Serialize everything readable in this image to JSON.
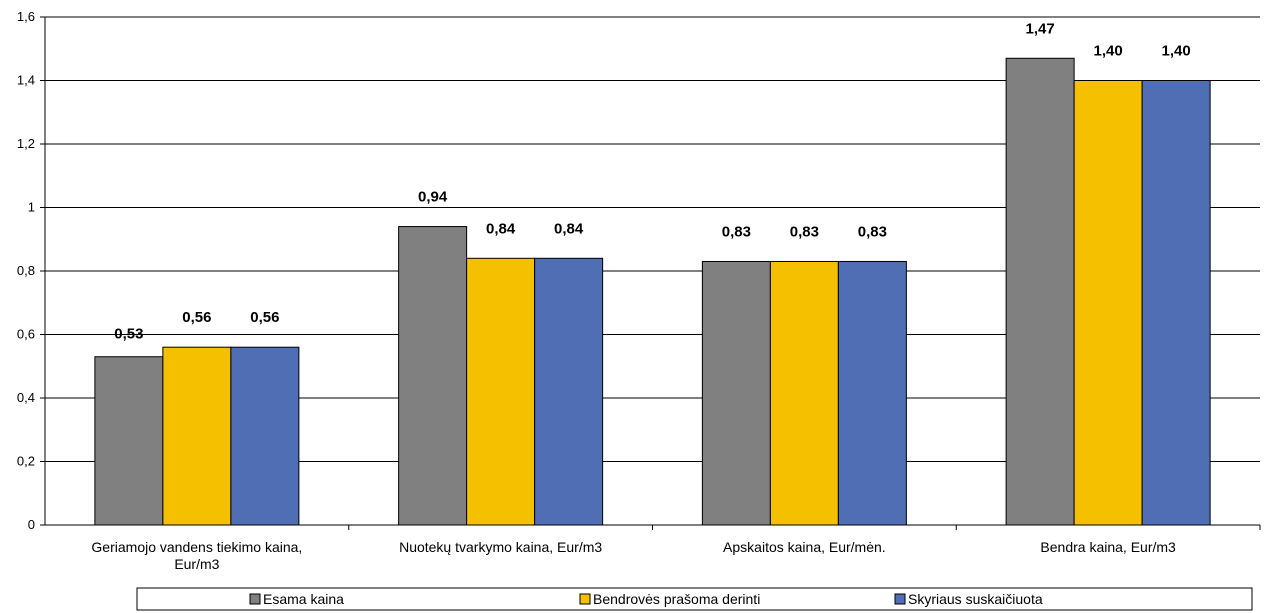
{
  "chart_data": {
    "type": "bar",
    "categories": [
      [
        "Geriamojo vandens tiekimo kaina,",
        "Eur/m3"
      ],
      [
        "Nuotekų tvarkymo kaina, Eur/m3"
      ],
      [
        "Apskaitos kaina, Eur/mėn."
      ],
      [
        "Bendra kaina, Eur/m3"
      ]
    ],
    "series": [
      {
        "name": "Esama kaina",
        "color": "#808080",
        "values": [
          0.53,
          0.94,
          0.83,
          1.47
        ],
        "labels": [
          "0,53",
          "0,94",
          "0,83",
          "1,47"
        ]
      },
      {
        "name": "Bendrovės prašoma derinti",
        "color": "#f5c000",
        "values": [
          0.56,
          0.84,
          0.83,
          1.4
        ],
        "labels": [
          "0,56",
          "0,84",
          "0,83",
          "1,40"
        ]
      },
      {
        "name": "Skyriaus suskaičiuota",
        "color": "#4f6eb4",
        "values": [
          0.56,
          0.84,
          0.83,
          1.4
        ],
        "labels": [
          "0,56",
          "0,84",
          "0,83",
          "1,40"
        ]
      }
    ],
    "yticks": [
      {
        "value": 0,
        "label": "0"
      },
      {
        "value": 0.2,
        "label": "0,2"
      },
      {
        "value": 0.4,
        "label": "0,4"
      },
      {
        "value": 0.6,
        "label": "0,6"
      },
      {
        "value": 0.8,
        "label": "0,8"
      },
      {
        "value": 1.0,
        "label": "1"
      },
      {
        "value": 1.2,
        "label": "1,2"
      },
      {
        "value": 1.4,
        "label": "1,4"
      },
      {
        "value": 1.6,
        "label": "1,6"
      }
    ],
    "ylim": [
      0,
      1.6
    ],
    "grid": true,
    "legend": "bottom",
    "title": "",
    "xlabel": "",
    "ylabel": ""
  }
}
